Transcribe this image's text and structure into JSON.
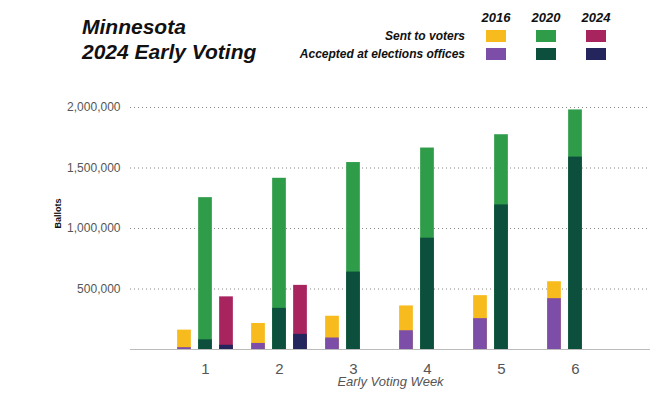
{
  "chart_data": {
    "type": "bar",
    "title": "Minnesota\n2024 Early Voting",
    "x_label": "Early Voting Week",
    "y_label": "Ballots",
    "categories": [
      "1",
      "2",
      "3",
      "4",
      "5",
      "6"
    ],
    "series": [
      {
        "name": "Sent to voters",
        "year": "2016",
        "color": "#f7bb1e",
        "values": [
          160000,
          215000,
          275000,
          360000,
          445000,
          560000
        ]
      },
      {
        "name": "Accepted at elections offices",
        "year": "2016",
        "color": "#7d4ea8",
        "values": [
          15000,
          50000,
          95000,
          155000,
          255000,
          420000
        ]
      },
      {
        "name": "Sent to voters",
        "year": "2020",
        "color": "#2f9c4a",
        "values": [
          1255000,
          1415000,
          1545000,
          1665000,
          1775000,
          1980000
        ]
      },
      {
        "name": "Accepted at elections offices",
        "year": "2020",
        "color": "#0c4f3d",
        "values": [
          80000,
          340000,
          640000,
          920000,
          1195000,
          1590000
        ]
      },
      {
        "name": "Sent to voters",
        "year": "2024",
        "color": "#a8245e",
        "values": [
          435000,
          530000,
          null,
          null,
          null,
          null
        ]
      },
      {
        "name": "Accepted at elections offices",
        "year": "2024",
        "color": "#25255e",
        "values": [
          35000,
          125000,
          null,
          null,
          null,
          null
        ]
      }
    ],
    "ylim": [
      0,
      2000000
    ],
    "yticks": [
      {
        "value": 500000,
        "label": "500,000"
      },
      {
        "value": 1000000,
        "label": "1,000,000"
      },
      {
        "value": 1500000,
        "label": "1,500,000"
      },
      {
        "value": 2000000,
        "label": "2,000,000"
      }
    ],
    "grid": true,
    "legend": "top-right"
  }
}
